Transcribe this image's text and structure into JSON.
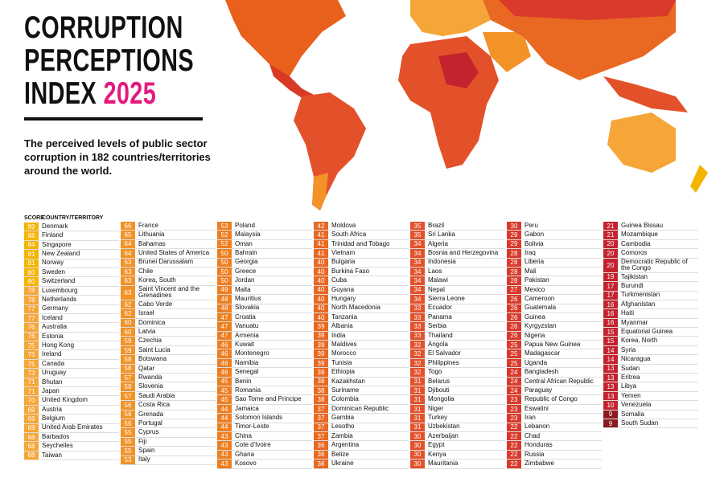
{
  "header": {
    "title_lines": [
      "CORRUPTION",
      "PERCEPTIONS",
      "INDEX"
    ],
    "year": "2025",
    "subtitle": "The perceived levels of public sector corruption in 182 countries/territories around the world."
  },
  "table": {
    "score_header": "SCORE",
    "country_header": "COUNTRY/TERRITORY",
    "columns": [
      {
        "rows": [
          [
            89,
            "Denmark",
            "#f5b400"
          ],
          [
            88,
            "Finland",
            "#f5b400"
          ],
          [
            84,
            "Singapore",
            "#f5b400"
          ],
          [
            81,
            "New Zealand",
            "#f5b400"
          ],
          [
            81,
            "Norway",
            "#f5b400"
          ],
          [
            80,
            "Sweden",
            "#f5b400"
          ],
          [
            80,
            "Switzerland",
            "#f5b400"
          ],
          [
            78,
            "Luxembourg",
            "#f6a638"
          ],
          [
            78,
            "Netherlands",
            "#f6a638"
          ],
          [
            77,
            "Germany",
            "#f6a638"
          ],
          [
            77,
            "Iceland",
            "#f6a638"
          ],
          [
            76,
            "Australia",
            "#f6a638"
          ],
          [
            76,
            "Estonia",
            "#f6a638"
          ],
          [
            75,
            "Hong Kong",
            "#f6a638"
          ],
          [
            75,
            "Ireland",
            "#f6a638"
          ],
          [
            75,
            "Canada",
            "#f6a638"
          ],
          [
            73,
            "Uruguay",
            "#f6a638"
          ],
          [
            71,
            "Bhutan",
            "#f6a638"
          ],
          [
            71,
            "Japan",
            "#f6a638"
          ],
          [
            70,
            "United Kingdom",
            "#f6a638"
          ],
          [
            69,
            "Austria",
            "#f6a638"
          ],
          [
            69,
            "Belgium",
            "#f6a638"
          ],
          [
            69,
            "United Arab Emirates",
            "#f6a638"
          ],
          [
            68,
            "Barbados",
            "#f6a638"
          ],
          [
            68,
            "Seychelles",
            "#f6a638"
          ],
          [
            68,
            "Taiwan",
            "#f6a638"
          ]
        ]
      },
      {
        "rows": [
          [
            66,
            "France",
            "#f29227"
          ],
          [
            65,
            "Lithuania",
            "#f29227"
          ],
          [
            64,
            "Bahamas",
            "#f29227"
          ],
          [
            64,
            "United States of America",
            "#f29227"
          ],
          [
            63,
            "Brunei Darussalam",
            "#f29227"
          ],
          [
            63,
            "Chile",
            "#f29227"
          ],
          [
            63,
            "Korea, South",
            "#f29227"
          ],
          [
            63,
            "Saint Vincent and the Grenadines",
            "#f29227"
          ],
          [
            62,
            "Cabo Verde",
            "#f29227"
          ],
          [
            62,
            "Israel",
            "#f29227"
          ],
          [
            60,
            "Dominica",
            "#f29227"
          ],
          [
            60,
            "Latvia",
            "#f29227"
          ],
          [
            59,
            "Czechia",
            "#f29227"
          ],
          [
            59,
            "Saint Lucia",
            "#f29227"
          ],
          [
            58,
            "Botswana",
            "#f29227"
          ],
          [
            58,
            "Qatar",
            "#f29227"
          ],
          [
            57,
            "Rwanda",
            "#f29227"
          ],
          [
            58,
            "Slovenia",
            "#f29227"
          ],
          [
            57,
            "Saudi Arabia",
            "#f29227"
          ],
          [
            56,
            "Costa Rica",
            "#f29227"
          ],
          [
            56,
            "Grenada",
            "#f29227"
          ],
          [
            56,
            "Portugal",
            "#f29227"
          ],
          [
            55,
            "Cyprus",
            "#f29227"
          ],
          [
            55,
            "Fiji",
            "#f29227"
          ],
          [
            55,
            "Spain",
            "#f29227"
          ],
          [
            53,
            "Italy",
            "#f29227"
          ]
        ]
      },
      {
        "rows": [
          [
            53,
            "Poland",
            "#ee7e20"
          ],
          [
            52,
            "Malaysia",
            "#ee7e20"
          ],
          [
            52,
            "Oman",
            "#ee7e20"
          ],
          [
            50,
            "Bahrain",
            "#ee7e20"
          ],
          [
            50,
            "Georgia",
            "#ee7e20"
          ],
          [
            50,
            "Greece",
            "#ee7e20"
          ],
          [
            50,
            "Jordan",
            "#ee7e20"
          ],
          [
            49,
            "Malta",
            "#ee7e20"
          ],
          [
            48,
            "Mauritius",
            "#ee7e20"
          ],
          [
            48,
            "Slovakia",
            "#ee7e20"
          ],
          [
            47,
            "Croatia",
            "#ee7e20"
          ],
          [
            47,
            "Vanuatu",
            "#ee7e20"
          ],
          [
            47,
            "Armenia",
            "#ee7e20"
          ],
          [
            46,
            "Kuwait",
            "#ee7e20"
          ],
          [
            46,
            "Montenegro",
            "#ee7e20"
          ],
          [
            46,
            "Namibia",
            "#ee7e20"
          ],
          [
            46,
            "Senegal",
            "#ee7e20"
          ],
          [
            45,
            "Benin",
            "#ee7e20"
          ],
          [
            45,
            "Romania",
            "#ee7e20"
          ],
          [
            45,
            "Sao Tome and Principe",
            "#ee7e20"
          ],
          [
            44,
            "Jamaica",
            "#ee7e20"
          ],
          [
            44,
            "Solomon Islands",
            "#ee7e20"
          ],
          [
            44,
            "Timor-Leste",
            "#ee7e20"
          ],
          [
            43,
            "China",
            "#ee7e20"
          ],
          [
            43,
            "Cote d'Ivoire",
            "#ee7e20"
          ],
          [
            43,
            "Ghana",
            "#ee7e20"
          ],
          [
            43,
            "Kosovo",
            "#ee7e20"
          ]
        ]
      },
      {
        "rows": [
          [
            42,
            "Moldova",
            "#e96822"
          ],
          [
            41,
            "South Africa",
            "#e96822"
          ],
          [
            41,
            "Trinidad and Tobago",
            "#e96822"
          ],
          [
            41,
            "Vietnam",
            "#e96822"
          ],
          [
            40,
            "Bulgaria",
            "#e96822"
          ],
          [
            40,
            "Burkina Faso",
            "#e96822"
          ],
          [
            40,
            "Cuba",
            "#e96822"
          ],
          [
            40,
            "Guyana",
            "#e96822"
          ],
          [
            40,
            "Hungary",
            "#e96822"
          ],
          [
            40,
            "North Macedonia",
            "#e96822"
          ],
          [
            40,
            "Tanzania",
            "#e96822"
          ],
          [
            39,
            "Albania",
            "#e96822"
          ],
          [
            39,
            "India",
            "#e96822"
          ],
          [
            39,
            "Maldives",
            "#e96822"
          ],
          [
            39,
            "Morocco",
            "#e96822"
          ],
          [
            39,
            "Tunisia",
            "#e96822"
          ],
          [
            38,
            "Ethiopia",
            "#e96822"
          ],
          [
            38,
            "Kazakhstan",
            "#e96822"
          ],
          [
            38,
            "Suriname",
            "#e96822"
          ],
          [
            38,
            "Colombia",
            "#e96822"
          ],
          [
            37,
            "Dominican Republic",
            "#e96822"
          ],
          [
            37,
            "Gambia",
            "#e96822"
          ],
          [
            37,
            "Lesotho",
            "#e96822"
          ],
          [
            37,
            "Zambia",
            "#e96822"
          ],
          [
            36,
            "Argentina",
            "#e96822"
          ],
          [
            36,
            "Belize",
            "#e96822"
          ],
          [
            36,
            "Ukraine",
            "#e96822"
          ]
        ]
      },
      {
        "rows": [
          [
            35,
            "Brazil",
            "#e3512a"
          ],
          [
            35,
            "Sri Lanka",
            "#e3512a"
          ],
          [
            34,
            "Algeria",
            "#e3512a"
          ],
          [
            34,
            "Bosnia and Herzegovina",
            "#e3512a"
          ],
          [
            34,
            "Indonesia",
            "#e3512a"
          ],
          [
            34,
            "Laos",
            "#e3512a"
          ],
          [
            34,
            "Malawi",
            "#e3512a"
          ],
          [
            34,
            "Nepal",
            "#e3512a"
          ],
          [
            34,
            "Sierra Leone",
            "#e3512a"
          ],
          [
            33,
            "Ecuador",
            "#e3512a"
          ],
          [
            33,
            "Panama",
            "#e3512a"
          ],
          [
            33,
            "Serbia",
            "#e3512a"
          ],
          [
            33,
            "Thailand",
            "#e3512a"
          ],
          [
            32,
            "Angola",
            "#e3512a"
          ],
          [
            32,
            "El Salvador",
            "#e3512a"
          ],
          [
            32,
            "Philippines",
            "#e3512a"
          ],
          [
            32,
            "Togo",
            "#e3512a"
          ],
          [
            31,
            "Belarus",
            "#e3512a"
          ],
          [
            31,
            "Djibouti",
            "#e3512a"
          ],
          [
            31,
            "Mongolia",
            "#e3512a"
          ],
          [
            31,
            "Niger",
            "#e3512a"
          ],
          [
            31,
            "Turkey",
            "#e3512a"
          ],
          [
            31,
            "Uzbekistan",
            "#e3512a"
          ],
          [
            30,
            "Azerbaijan",
            "#e3512a"
          ],
          [
            30,
            "Egypt",
            "#e3512a"
          ],
          [
            30,
            "Kenya",
            "#e3512a"
          ],
          [
            30,
            "Mauritania",
            "#e3512a"
          ]
        ]
      },
      {
        "rows": [
          [
            30,
            "Peru",
            "#da3a2b"
          ],
          [
            29,
            "Gabon",
            "#da3a2b"
          ],
          [
            29,
            "Bolivia",
            "#da3a2b"
          ],
          [
            28,
            "Iraq",
            "#da3a2b"
          ],
          [
            28,
            "Liberia",
            "#da3a2b"
          ],
          [
            28,
            "Mali",
            "#da3a2b"
          ],
          [
            28,
            "Pakistan",
            "#da3a2b"
          ],
          [
            27,
            "Mexico",
            "#da3a2b"
          ],
          [
            26,
            "Cameroon",
            "#da3a2b"
          ],
          [
            26,
            "Guatemala",
            "#da3a2b"
          ],
          [
            26,
            "Guinea",
            "#da3a2b"
          ],
          [
            26,
            "Kyrgyzstan",
            "#da3a2b"
          ],
          [
            26,
            "Nigeria",
            "#da3a2b"
          ],
          [
            25,
            "Papua New Guinea",
            "#da3a2b"
          ],
          [
            25,
            "Madagascar",
            "#da3a2b"
          ],
          [
            25,
            "Uganda",
            "#da3a2b"
          ],
          [
            24,
            "Bangladesh",
            "#da3a2b"
          ],
          [
            24,
            "Central African Republic",
            "#da3a2b"
          ],
          [
            24,
            "Paraguay",
            "#da3a2b"
          ],
          [
            23,
            "Republic of Congo",
            "#da3a2b"
          ],
          [
            23,
            "Eswatini",
            "#da3a2b"
          ],
          [
            23,
            "Iran",
            "#da3a2b"
          ],
          [
            22,
            "Lebanon",
            "#da3a2b"
          ],
          [
            22,
            "Chad",
            "#da3a2b"
          ],
          [
            22,
            "Honduras",
            "#da3a2b"
          ],
          [
            22,
            "Russia",
            "#da3a2b"
          ],
          [
            22,
            "Zimbabwe",
            "#da3a2b"
          ]
        ]
      },
      {
        "rows": [
          [
            21,
            "Guinea Bissau",
            "#c3232f"
          ],
          [
            21,
            "Mozambique",
            "#c3232f"
          ],
          [
            20,
            "Cambodia",
            "#c3232f"
          ],
          [
            20,
            "Comoros",
            "#c3232f"
          ],
          [
            20,
            "Democratic Republic of the Congo",
            "#c3232f"
          ],
          [
            19,
            "Tajikistan",
            "#c3232f"
          ],
          [
            17,
            "Burundi",
            "#c3232f"
          ],
          [
            17,
            "Turkmenistan",
            "#c3232f"
          ],
          [
            16,
            "Afghanistan",
            "#c3232f"
          ],
          [
            16,
            "Haiti",
            "#c3232f"
          ],
          [
            16,
            "Myanmar",
            "#c3232f"
          ],
          [
            15,
            "Equatorial Guinea",
            "#c3232f"
          ],
          [
            15,
            "Korea, North",
            "#c3232f"
          ],
          [
            14,
            "Syria",
            "#c3232f"
          ],
          [
            14,
            "Nicaragua",
            "#c3232f"
          ],
          [
            13,
            "Sudan",
            "#c3232f"
          ],
          [
            13,
            "Eritrea",
            "#c3232f"
          ],
          [
            13,
            "Libya",
            "#c3232f"
          ],
          [
            13,
            "Yemen",
            "#c3232f"
          ],
          [
            10,
            "Venezuela",
            "#c3232f"
          ],
          [
            9,
            "Somalia",
            "#8b1a1e"
          ],
          [
            9,
            "South Sudan",
            "#8b1a1e"
          ]
        ]
      }
    ]
  }
}
